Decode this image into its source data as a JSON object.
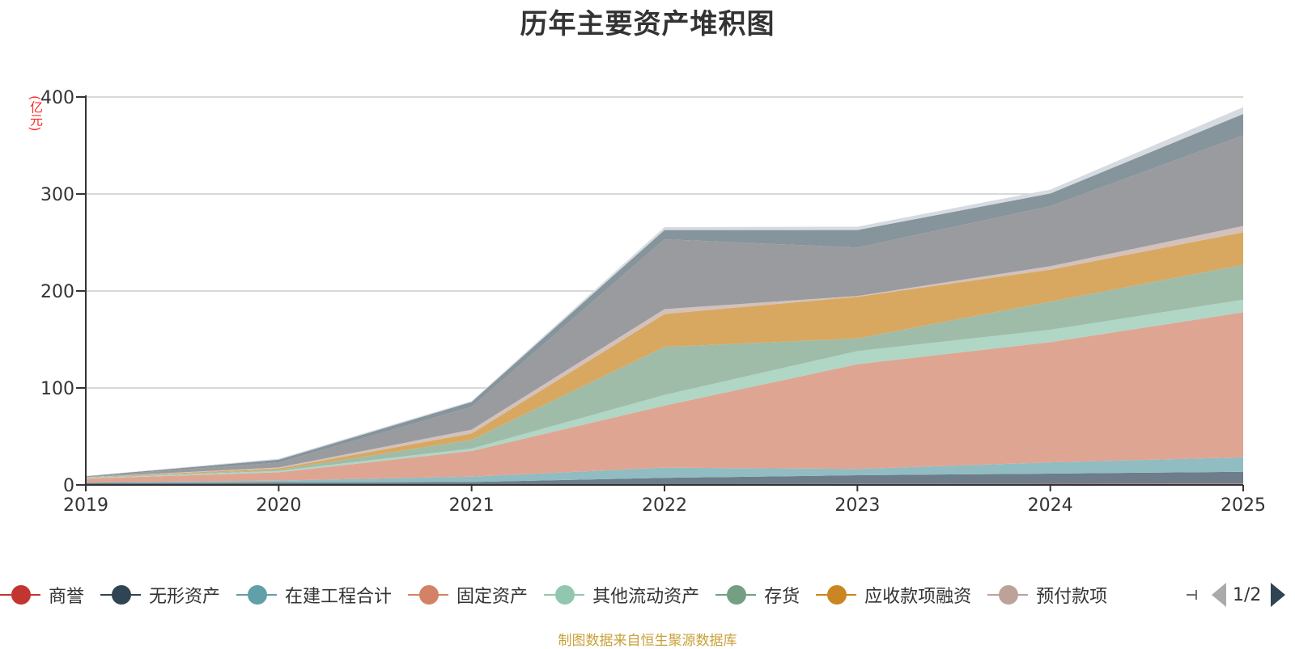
{
  "title": "历年主要资产堆积图",
  "unit_label": "(亿元)",
  "source_note": "制图数据来自恒生聚源数据库",
  "legend": {
    "page_indicator": "1/2",
    "prev_icon": "triangle-left-icon",
    "next_icon": "triangle-right-icon"
  },
  "chart_data": {
    "type": "area",
    "stacked": true,
    "title": "历年主要资产堆积图",
    "xlabel": "",
    "ylabel": "(亿元)",
    "categories": [
      "2019",
      "2020",
      "2021",
      "2022",
      "2023",
      "2024",
      "2025"
    ],
    "ylim": [
      0,
      400
    ],
    "yticks": [
      0,
      100,
      200,
      300,
      400
    ],
    "grid": true,
    "legend_position": "bottom",
    "series": [
      {
        "name": "商誉",
        "color": "#c23531",
        "fill": "#d77572",
        "values": [
          0.5,
          0.5,
          0.5,
          0.8,
          1.0,
          1.2,
          1.5
        ],
        "in_legend": true
      },
      {
        "name": "无形资产",
        "color": "#2f4554",
        "fill": "#6d7d89",
        "values": [
          1.5,
          2.0,
          2.5,
          6.5,
          9.0,
          10.5,
          12.0
        ],
        "in_legend": true
      },
      {
        "name": "在建工程合计",
        "color": "#61a0a8",
        "fill": "#90bcc2",
        "values": [
          0.5,
          2.0,
          5.5,
          10.5,
          6.5,
          11.5,
          15.0
        ],
        "in_legend": true
      },
      {
        "name": "固定资产",
        "color": "#d48265",
        "fill": "#dfa593",
        "values": [
          4.0,
          8.5,
          26.5,
          64.0,
          108.0,
          124.0,
          149.5
        ],
        "in_legend": true
      },
      {
        "name": "其他流动资产",
        "color": "#91c7ae",
        "fill": "#b0d6c5",
        "values": [
          0.5,
          1.5,
          2.5,
          11.0,
          13.5,
          12.8,
          13.0
        ],
        "in_legend": true
      },
      {
        "name": "存货",
        "color": "#749f83",
        "fill": "#9fbca9",
        "values": [
          0.5,
          1.0,
          9.0,
          49.5,
          13.0,
          29.0,
          36.0
        ],
        "in_legend": true
      },
      {
        "name": "应收款项融资",
        "color": "#ca8622",
        "fill": "#d8a860",
        "values": [
          0.3,
          1.5,
          6.5,
          34.0,
          43.0,
          33.0,
          33.5
        ],
        "in_legend": true
      },
      {
        "name": "预付款项",
        "color": "#bda29a",
        "fill": "#d3c1bc",
        "values": [
          0.2,
          1.0,
          4.0,
          5.0,
          0.8,
          3.5,
          6.5
        ],
        "in_legend": true
      },
      {
        "name": "",
        "color": "#6e7074",
        "fill": "#9a9b9f",
        "values": [
          0.5,
          5.0,
          23.5,
          72.0,
          50.0,
          62.0,
          93.5
        ],
        "in_legend": false
      },
      {
        "name": "",
        "color": "#546570",
        "fill": "#86949c",
        "values": [
          0.5,
          3.0,
          5.0,
          9.5,
          18.0,
          13.0,
          22.0
        ],
        "in_legend": false
      },
      {
        "name": "",
        "color": "#c4ccd3",
        "fill": "#d5dbe0",
        "values": [
          0.3,
          1.0,
          1.0,
          3.0,
          3.5,
          4.0,
          7.0
        ],
        "in_legend": false
      }
    ]
  }
}
